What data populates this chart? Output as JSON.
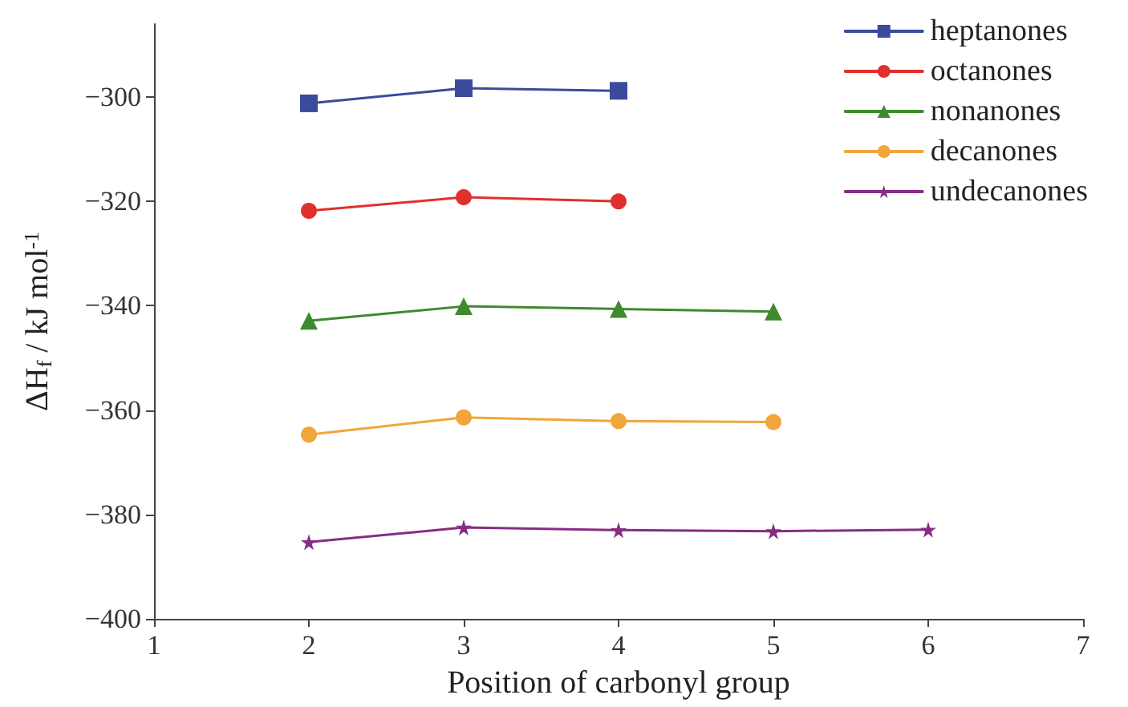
{
  "chart_data": {
    "type": "line",
    "xlabel": "Position of carbonyl group",
    "ylabel": "ΔH$_{f}$ / kJ mol$^{-1}$",
    "xlim": [
      1,
      7
    ],
    "xticks": [
      1,
      2,
      3,
      4,
      5,
      6,
      7
    ],
    "ylim": [
      -400,
      -286
    ],
    "yticks": [
      -400,
      -380,
      -360,
      -340,
      -320,
      -300
    ],
    "grid": false,
    "legend": "top right",
    "line_style": "solid",
    "series": [
      {
        "name": "heptanones",
        "color": "#3b4a9a",
        "marker": "square",
        "x": [
          2,
          3,
          4
        ],
        "values": [
          -301.2,
          -298.3,
          -298.8
        ]
      },
      {
        "name": "octanones",
        "color": "#e0302e",
        "marker": "circle",
        "x": [
          2,
          3,
          4
        ],
        "values": [
          -321.8,
          -319.2,
          -320.0
        ]
      },
      {
        "name": "nonanones",
        "color": "#3e8a2e",
        "marker": "triangle",
        "x": [
          2,
          3,
          4,
          5
        ],
        "values": [
          -342.9,
          -340.1,
          -340.6,
          -341.1
        ]
      },
      {
        "name": "decanones",
        "color": "#f2a53a",
        "marker": "circle",
        "x": [
          2,
          3,
          4,
          5
        ],
        "values": [
          -364.7,
          -361.4,
          -362.1,
          -362.3
        ]
      },
      {
        "name": "undecanones",
        "color": "#862d84",
        "marker": "star",
        "x": [
          2,
          3,
          4,
          5,
          6
        ],
        "values": [
          -385.3,
          -382.5,
          -383.0,
          -383.2,
          -382.9
        ]
      }
    ]
  }
}
